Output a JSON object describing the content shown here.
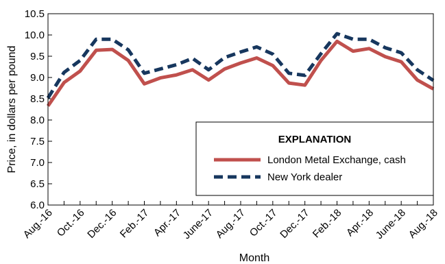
{
  "chart_data": {
    "type": "line",
    "xlabel": "Month",
    "ylabel": "Price, in dollars per pound",
    "ylim": [
      6.0,
      10.5
    ],
    "yticks": [
      "6.0",
      "6.5",
      "7.0",
      "7.5",
      "8.0",
      "8.5",
      "9.0",
      "9.5",
      "10.0",
      "10.5"
    ],
    "x": [
      "Aug.-16",
      "Sept.-16",
      "Oct.-16",
      "Nov.-16",
      "Dec.-16",
      "Jan.-17",
      "Feb.-17",
      "Mar.-17",
      "Apr.-17",
      "May-17",
      "June-17",
      "July-17",
      "Aug.-17",
      "Sept.-17",
      "Oct.-17",
      "Nov.-17",
      "Dec.-17",
      "Jan.-18",
      "Feb.-18",
      "Mar.-18",
      "Apr.-18",
      "May-18",
      "June-18",
      "July-18",
      "Aug.-18"
    ],
    "xtick_labels": [
      "Aug.-16",
      "Oct.-16",
      "Dec.-16",
      "Feb.-17",
      "Apr.-17",
      "June-17",
      "Aug.-17",
      "Oct.-17",
      "Dec.-17",
      "Feb.-18",
      "Apr.-18",
      "June-18",
      "Aug.-18"
    ],
    "grid": false,
    "legend": {
      "title": "EXPLANATION",
      "placement": "bottom-right"
    },
    "series": [
      {
        "name": "London Metal Exchange, cash",
        "style": "solid",
        "color": "#c0504d",
        "values": [
          8.33,
          8.88,
          9.15,
          9.64,
          9.66,
          9.4,
          8.85,
          8.99,
          9.06,
          9.18,
          8.94,
          9.2,
          9.34,
          9.46,
          9.28,
          8.87,
          8.82,
          9.4,
          9.85,
          9.62,
          9.68,
          9.49,
          9.37,
          8.94,
          8.73
        ]
      },
      {
        "name": "New York dealer",
        "style": "dashed",
        "color": "#17375e",
        "values": [
          8.52,
          9.12,
          9.4,
          9.9,
          9.9,
          9.65,
          9.1,
          9.2,
          9.3,
          9.45,
          9.18,
          9.47,
          9.6,
          9.72,
          9.55,
          9.1,
          9.05,
          9.56,
          10.03,
          9.9,
          9.9,
          9.7,
          9.58,
          9.18,
          8.93
        ]
      }
    ]
  }
}
